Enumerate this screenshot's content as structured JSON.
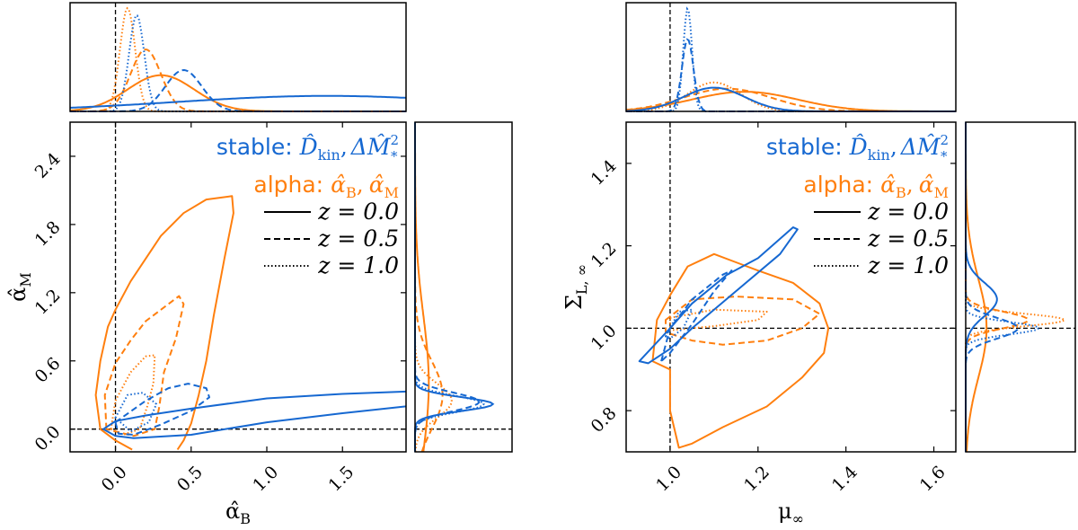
{
  "colors": {
    "stable": "#1668d1",
    "alpha": "#ff7f0e",
    "ref": "#000000"
  },
  "legend": {
    "stable_prefix": "stable:",
    "stable_p1": "D̂",
    "stable_p1_sub": "kin",
    "stable_sep": ",",
    "stable_p2": "ΔM̂",
    "stable_p2_sup": "2",
    "stable_p2_sub": "*",
    "alpha_prefix": "alpha:",
    "alpha_p1": "α̂",
    "alpha_p1_sub": "B",
    "alpha_sep": ",",
    "alpha_p2": "α̂",
    "alpha_p2_sub": "M",
    "styles": [
      {
        "label": "z = 0.0",
        "dash": "solid"
      },
      {
        "label": "z = 0.5",
        "dash": "dashed"
      },
      {
        "label": "z = 1.0",
        "dash": "dotted"
      }
    ]
  },
  "chart_data": [
    {
      "type": "contour",
      "xlabel": {
        "base": "α̂",
        "sub": "B"
      },
      "ylabel": {
        "base": "α̂",
        "sub": "M"
      },
      "xlim": [
        -0.3,
        1.92
      ],
      "ylim": [
        -0.2,
        2.7
      ],
      "xticks": [
        "0.0",
        "0.5",
        "1.0",
        "1.5"
      ],
      "yticks": [
        "0.0",
        "0.6",
        "1.2",
        "1.8",
        "2.4"
      ],
      "reference": {
        "x": 0.0,
        "y": 0.0
      },
      "contours": [
        {
          "model": "alpha",
          "z": "z = 0.0",
          "dash": "solid",
          "closed": false,
          "points": [
            [
              0.11,
              -0.18
            ],
            [
              0.0,
              -0.1
            ],
            [
              -0.1,
              0.0
            ],
            [
              -0.13,
              0.3
            ],
            [
              -0.1,
              0.6
            ],
            [
              -0.05,
              0.9
            ],
            [
              0.0,
              1.05
            ],
            [
              0.1,
              1.3
            ],
            [
              0.2,
              1.5
            ],
            [
              0.3,
              1.7
            ],
            [
              0.45,
              1.9
            ],
            [
              0.6,
              2.02
            ],
            [
              0.77,
              2.05
            ],
            [
              0.78,
              1.9
            ],
            [
              0.72,
              1.5
            ],
            [
              0.65,
              1.0
            ],
            [
              0.6,
              0.6
            ],
            [
              0.55,
              0.3
            ],
            [
              0.5,
              0.05
            ],
            [
              0.45,
              -0.1
            ],
            [
              0.41,
              -0.18
            ]
          ]
        },
        {
          "model": "alpha",
          "z": "z = 0.5",
          "dash": "dashed",
          "closed": true,
          "points": [
            [
              -0.06,
              0.0
            ],
            [
              -0.07,
              0.3
            ],
            [
              0.0,
              0.58
            ],
            [
              0.1,
              0.78
            ],
            [
              0.2,
              0.95
            ],
            [
              0.33,
              1.08
            ],
            [
              0.42,
              1.17
            ],
            [
              0.45,
              1.1
            ],
            [
              0.4,
              0.8
            ],
            [
              0.32,
              0.5
            ],
            [
              0.29,
              0.2
            ],
            [
              0.26,
              0.0
            ],
            [
              0.12,
              -0.06
            ]
          ]
        },
        {
          "model": "alpha",
          "z": "z = 1.0",
          "dash": "dotted",
          "closed": true,
          "points": [
            [
              -0.03,
              0.0
            ],
            [
              0.0,
              0.25
            ],
            [
              0.1,
              0.5
            ],
            [
              0.2,
              0.64
            ],
            [
              0.26,
              0.65
            ],
            [
              0.25,
              0.4
            ],
            [
              0.21,
              0.2
            ],
            [
              0.16,
              0.0
            ],
            [
              0.05,
              -0.05
            ]
          ]
        },
        {
          "model": "stable",
          "z": "z = 0.0",
          "dash": "solid",
          "closed": false,
          "points": [
            [
              1.92,
              0.33
            ],
            [
              1.5,
              0.31
            ],
            [
              1.0,
              0.27
            ],
            [
              0.5,
              0.18
            ],
            [
              0.2,
              0.12
            ],
            [
              0.0,
              0.07
            ],
            [
              -0.08,
              0.0
            ],
            [
              0.0,
              -0.06
            ],
            [
              0.12,
              -0.08
            ],
            [
              0.5,
              -0.05
            ],
            [
              1.0,
              0.06
            ],
            [
              1.5,
              0.14
            ],
            [
              1.92,
              0.2
            ]
          ]
        },
        {
          "model": "stable",
          "z": "z = 0.5",
          "dash": "dashed",
          "closed": true,
          "points": [
            [
              0.0,
              0.06
            ],
            [
              0.2,
              0.25
            ],
            [
              0.35,
              0.36
            ],
            [
              0.48,
              0.4
            ],
            [
              0.6,
              0.36
            ],
            [
              0.62,
              0.28
            ],
            [
              0.5,
              0.16
            ],
            [
              0.3,
              0.04
            ],
            [
              0.12,
              -0.05
            ],
            [
              0.02,
              -0.04
            ]
          ]
        },
        {
          "model": "stable",
          "z": "z = 1.0",
          "dash": "dotted",
          "closed": true,
          "points": [
            [
              0.0,
              0.1
            ],
            [
              0.08,
              0.3
            ],
            [
              0.18,
              0.32
            ],
            [
              0.27,
              0.22
            ],
            [
              0.22,
              0.06
            ],
            [
              0.1,
              -0.02
            ]
          ]
        }
      ],
      "top_marginal": [
        {
          "model": "alpha",
          "dash": "solid",
          "mean": 0.3,
          "sd": 0.22,
          "peak": 0.35
        },
        {
          "model": "alpha",
          "dash": "dashed",
          "mean": 0.2,
          "sd": 0.1,
          "peak": 0.6
        },
        {
          "model": "alpha",
          "dash": "dotted",
          "mean": 0.08,
          "sd": 0.05,
          "peak": 1.0
        },
        {
          "model": "stable",
          "dash": "solid",
          "mean": 1.4,
          "sd": 1.0,
          "peak": 0.15
        },
        {
          "model": "stable",
          "dash": "dashed",
          "mean": 0.45,
          "sd": 0.12,
          "peak": 0.4
        },
        {
          "model": "stable",
          "dash": "dotted",
          "mean": 0.14,
          "sd": 0.05,
          "peak": 0.93
        }
      ],
      "side_marginal": [
        {
          "model": "alpha",
          "dash": "solid",
          "mean": 0.4,
          "sd": 0.6,
          "peak": 0.15
        },
        {
          "model": "alpha",
          "dash": "dashed",
          "mean": 0.3,
          "sd": 0.3,
          "peak": 0.3
        },
        {
          "model": "alpha",
          "dash": "dotted",
          "mean": 0.25,
          "sd": 0.15,
          "peak": 0.4
        },
        {
          "model": "stable",
          "dash": "solid",
          "mean": 0.22,
          "sd": 0.06,
          "peak": 0.85
        },
        {
          "model": "stable",
          "dash": "dashed",
          "mean": 0.24,
          "sd": 0.08,
          "peak": 0.7
        },
        {
          "model": "stable",
          "dash": "dotted",
          "mean": 0.22,
          "sd": 0.07,
          "peak": 0.75
        }
      ]
    },
    {
      "type": "contour",
      "xlabel": {
        "base": "μ",
        "sub": "∞"
      },
      "ylabel": {
        "base": "Σ",
        "sub": "L, ∞"
      },
      "xlim": [
        0.9,
        1.65
      ],
      "ylim": [
        0.7,
        1.5
      ],
      "xticks": [
        "1.0",
        "1.2",
        "1.4",
        "1.6"
      ],
      "yticks": [
        "0.8",
        "1.0",
        "1.2",
        "1.4"
      ],
      "reference": {
        "x": 1.0,
        "y": 1.0
      },
      "contours": [
        {
          "model": "alpha",
          "z": "z = 0.0",
          "dash": "solid",
          "closed": true,
          "points": [
            [
              1.02,
              0.71
            ],
            [
              1.0,
              0.8
            ],
            [
              1.0,
              0.9
            ],
            [
              0.96,
              0.92
            ],
            [
              0.97,
              1.02
            ],
            [
              1.0,
              1.08
            ],
            [
              1.04,
              1.15
            ],
            [
              1.1,
              1.18
            ],
            [
              1.15,
              1.16
            ],
            [
              1.2,
              1.14
            ],
            [
              1.28,
              1.11
            ],
            [
              1.34,
              1.06
            ],
            [
              1.36,
              1.0
            ],
            [
              1.35,
              0.94
            ],
            [
              1.3,
              0.88
            ],
            [
              1.22,
              0.81
            ],
            [
              1.12,
              0.76
            ],
            [
              1.05,
              0.72
            ]
          ]
        },
        {
          "model": "alpha",
          "z": "z = 0.5",
          "dash": "dashed",
          "closed": true,
          "points": [
            [
              0.99,
              1.02
            ],
            [
              1.05,
              1.07
            ],
            [
              1.15,
              1.077
            ],
            [
              1.28,
              1.07
            ],
            [
              1.34,
              1.035
            ],
            [
              1.3,
              1.0
            ],
            [
              1.22,
              0.97
            ],
            [
              1.12,
              0.96
            ],
            [
              1.05,
              0.97
            ],
            [
              0.99,
              0.99
            ]
          ]
        },
        {
          "model": "alpha",
          "z": "z = 1.0",
          "dash": "dotted",
          "closed": true,
          "points": [
            [
              1.0,
              1.025
            ],
            [
              1.1,
              1.045
            ],
            [
              1.22,
              1.04
            ],
            [
              1.2,
              1.02
            ],
            [
              1.1,
              1.005
            ],
            [
              1.0,
              0.995
            ]
          ]
        },
        {
          "model": "stable",
          "z": "z = 0.0",
          "dash": "solid",
          "closed": true,
          "points": [
            [
              0.93,
              0.92
            ],
            [
              1.0,
              1.0
            ],
            [
              1.05,
              1.06
            ],
            [
              1.13,
              1.13
            ],
            [
              1.2,
              1.17
            ],
            [
              1.28,
              1.245
            ],
            [
              1.29,
              1.24
            ],
            [
              1.25,
              1.18
            ],
            [
              1.15,
              1.09
            ],
            [
              1.05,
              1.0
            ],
            [
              1.0,
              0.95
            ],
            [
              0.95,
              0.915
            ]
          ]
        },
        {
          "model": "stable",
          "z": "z = 0.5",
          "dash": "dashed",
          "closed": true,
          "points": [
            [
              0.98,
              0.92
            ],
            [
              1.0,
              1.0
            ],
            [
              1.05,
              1.07
            ],
            [
              1.12,
              1.13
            ],
            [
              1.14,
              1.14
            ],
            [
              1.1,
              1.09
            ],
            [
              1.05,
              1.01
            ],
            [
              1.0,
              0.94
            ]
          ]
        },
        {
          "model": "stable",
          "z": "z = 1.0",
          "dash": "dotted",
          "closed": true,
          "points": [
            [
              0.99,
              0.98
            ],
            [
              1.02,
              1.04
            ],
            [
              1.05,
              1.045
            ],
            [
              1.03,
              1.0
            ],
            [
              1.0,
              0.975
            ]
          ]
        }
      ],
      "top_marginal": [
        {
          "model": "alpha",
          "dash": "solid",
          "mean": 1.17,
          "sd": 0.12,
          "peak": 0.19
        },
        {
          "model": "alpha",
          "dash": "dashed",
          "mean": 1.13,
          "sd": 0.1,
          "peak": 0.22
        },
        {
          "model": "alpha",
          "dash": "dotted",
          "mean": 1.1,
          "sd": 0.06,
          "peak": 0.28
        },
        {
          "model": "stable",
          "dash": "solid",
          "mean": 1.1,
          "sd": 0.07,
          "peak": 0.23
        },
        {
          "model": "stable",
          "dash": "dashed",
          "mean": 1.04,
          "sd": 0.013,
          "peak": 0.7
        },
        {
          "model": "stable",
          "dash": "dotted",
          "mean": 1.04,
          "sd": 0.01,
          "peak": 1.0
        }
      ],
      "side_marginal": [
        {
          "model": "alpha",
          "dash": "solid",
          "mean": 1.0,
          "sd": 0.12,
          "peak": 0.2
        },
        {
          "model": "alpha",
          "dash": "dashed",
          "mean": 1.02,
          "sd": 0.02,
          "peak": 0.6
        },
        {
          "model": "alpha",
          "dash": "dotted",
          "mean": 1.02,
          "sd": 0.015,
          "peak": 0.95
        },
        {
          "model": "stable",
          "dash": "solid",
          "mean": 1.07,
          "sd": 0.04,
          "peak": 0.3
        },
        {
          "model": "stable",
          "dash": "dashed",
          "mean": 1.0,
          "sd": 0.025,
          "peak": 0.5
        },
        {
          "model": "stable",
          "dash": "dotted",
          "mean": 1.0,
          "sd": 0.015,
          "peak": 0.7
        }
      ]
    }
  ]
}
